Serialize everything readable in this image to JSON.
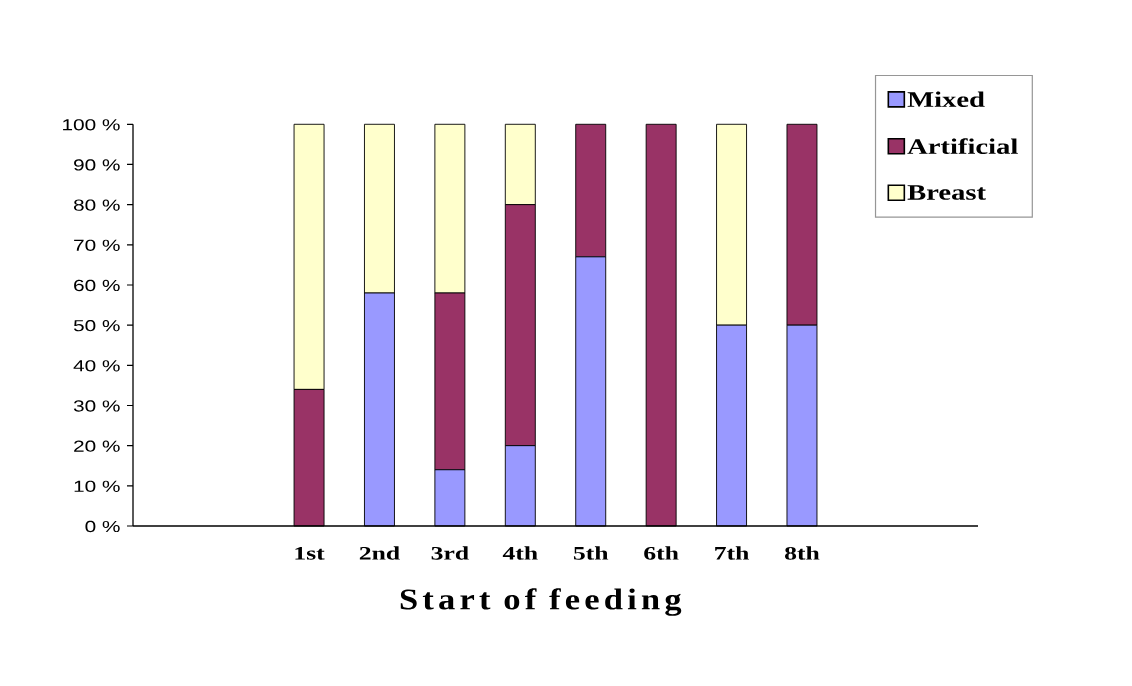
{
  "chart_data": {
    "type": "bar",
    "stacked": true,
    "xlabel": "Start of feeding",
    "categories": [
      null,
      null,
      "1st",
      "2nd",
      "3rd",
      "4th",
      "5th",
      "6th",
      "7th",
      "8th",
      null,
      null
    ],
    "series": [
      {
        "name": "Mixed",
        "color": "#9999ff",
        "values": [
          null,
          null,
          0,
          58,
          14,
          20,
          67,
          0,
          50,
          50,
          null,
          null
        ]
      },
      {
        "name": "Artificial",
        "color": "#993366",
        "values": [
          null,
          null,
          34,
          0,
          44,
          60,
          33,
          100,
          0,
          50,
          null,
          null
        ]
      },
      {
        "name": "Breast",
        "color": "#ffffcc",
        "values": [
          null,
          null,
          66,
          42,
          42,
          20,
          0,
          0,
          50,
          0,
          null,
          null
        ]
      }
    ],
    "ylim": [
      0,
      100
    ],
    "yticks": [
      {
        "value": 0,
        "label": "0 %"
      },
      {
        "value": 10,
        "label": "10 %"
      },
      {
        "value": 20,
        "label": "20 %"
      },
      {
        "value": 30,
        "label": "30 %"
      },
      {
        "value": 40,
        "label": "40 %"
      },
      {
        "value": 50,
        "label": "50 %"
      },
      {
        "value": 60,
        "label": "60 %"
      },
      {
        "value": 70,
        "label": "70 %"
      },
      {
        "value": 80,
        "label": "80 %"
      },
      {
        "value": 90,
        "label": "90 %"
      },
      {
        "value": 100,
        "label": "100 %"
      }
    ],
    "legend": "top right"
  }
}
